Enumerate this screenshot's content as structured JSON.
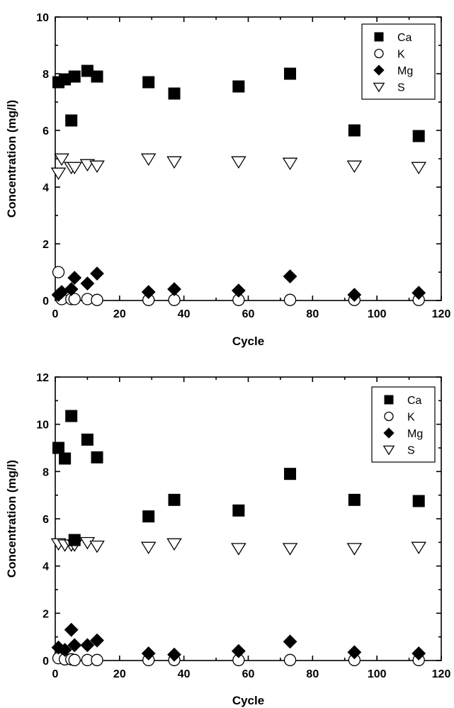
{
  "colors": {
    "filled": "#000000",
    "hollow": "#ffffff",
    "stroke": "#000000"
  },
  "chart_data": [
    {
      "type": "scatter",
      "title": "",
      "xlabel": "Cycle",
      "ylabel": "Concentration (mg/l)",
      "xlim": [
        0,
        120
      ],
      "ylim": [
        0,
        10
      ],
      "xticks": [
        0,
        20,
        40,
        60,
        80,
        100,
        120
      ],
      "yticks": [
        0,
        2,
        4,
        6,
        8,
        10
      ],
      "grid": false,
      "legend_position": "top-right",
      "series": [
        {
          "name": "Ca",
          "marker": "square",
          "points": [
            [
              1,
              7.7
            ],
            [
              3,
              7.8
            ],
            [
              5,
              6.35
            ],
            [
              6,
              7.9
            ],
            [
              10,
              8.1
            ],
            [
              13,
              7.9
            ],
            [
              29,
              7.7
            ],
            [
              37,
              7.3
            ],
            [
              57,
              7.55
            ],
            [
              73,
              8.0
            ],
            [
              93,
              6.0
            ],
            [
              113,
              5.8
            ]
          ]
        },
        {
          "name": "K",
          "marker": "circle",
          "points": [
            [
              1,
              1.0
            ],
            [
              2,
              0.05
            ],
            [
              5,
              0.05
            ],
            [
              6,
              0.05
            ],
            [
              10,
              0.05
            ],
            [
              13,
              0.02
            ],
            [
              29,
              0.02
            ],
            [
              37,
              0.02
            ],
            [
              57,
              0.02
            ],
            [
              73,
              0.02
            ],
            [
              93,
              0.02
            ],
            [
              113,
              0.02
            ]
          ]
        },
        {
          "name": "Mg",
          "marker": "diamond",
          "points": [
            [
              1,
              0.2
            ],
            [
              2,
              0.3
            ],
            [
              5,
              0.4
            ],
            [
              6,
              0.8
            ],
            [
              10,
              0.6
            ],
            [
              13,
              0.95
            ],
            [
              29,
              0.3
            ],
            [
              37,
              0.4
            ],
            [
              57,
              0.35
            ],
            [
              73,
              0.85
            ],
            [
              93,
              0.2
            ],
            [
              113,
              0.27
            ]
          ]
        },
        {
          "name": "S",
          "marker": "triangle-down",
          "points": [
            [
              1,
              4.5
            ],
            [
              2,
              5.0
            ],
            [
              5,
              4.7
            ],
            [
              6,
              4.7
            ],
            [
              10,
              4.8
            ],
            [
              13,
              4.75
            ],
            [
              29,
              5.0
            ],
            [
              37,
              4.9
            ],
            [
              57,
              4.9
            ],
            [
              73,
              4.85
            ],
            [
              93,
              4.75
            ],
            [
              113,
              4.7
            ]
          ]
        }
      ]
    },
    {
      "type": "scatter",
      "title": "",
      "xlabel": "Cycle",
      "ylabel": "Concentration (mg/l)",
      "xlim": [
        0,
        120
      ],
      "ylim": [
        0,
        12
      ],
      "xticks": [
        0,
        20,
        40,
        60,
        80,
        100,
        120
      ],
      "yticks": [
        0,
        2,
        4,
        6,
        8,
        10,
        12
      ],
      "grid": false,
      "legend_position": "top-right",
      "series": [
        {
          "name": "Ca",
          "marker": "square",
          "points": [
            [
              1,
              9.0
            ],
            [
              3,
              8.55
            ],
            [
              5,
              10.35
            ],
            [
              6,
              5.1
            ],
            [
              10,
              9.35
            ],
            [
              13,
              8.6
            ],
            [
              29,
              6.1
            ],
            [
              37,
              6.8
            ],
            [
              57,
              6.35
            ],
            [
              73,
              7.9
            ],
            [
              93,
              6.8
            ],
            [
              113,
              6.75
            ]
          ]
        },
        {
          "name": "K",
          "marker": "circle",
          "points": [
            [
              1,
              0.1
            ],
            [
              3,
              0.05
            ],
            [
              5,
              0.05
            ],
            [
              6,
              0.02
            ],
            [
              10,
              0.02
            ],
            [
              13,
              0.02
            ],
            [
              29,
              0.02
            ],
            [
              37,
              0.02
            ],
            [
              57,
              0.02
            ],
            [
              73,
              0.02
            ],
            [
              93,
              0.02
            ],
            [
              113,
              0.02
            ]
          ]
        },
        {
          "name": "Mg",
          "marker": "diamond",
          "points": [
            [
              1,
              0.55
            ],
            [
              3,
              0.45
            ],
            [
              5,
              1.3
            ],
            [
              6,
              0.65
            ],
            [
              10,
              0.65
            ],
            [
              13,
              0.85
            ],
            [
              29,
              0.3
            ],
            [
              37,
              0.25
            ],
            [
              57,
              0.4
            ],
            [
              73,
              0.8
            ],
            [
              93,
              0.35
            ],
            [
              113,
              0.3
            ]
          ]
        },
        {
          "name": "S",
          "marker": "triangle-down",
          "points": [
            [
              1,
              4.95
            ],
            [
              3,
              4.9
            ],
            [
              5,
              4.9
            ],
            [
              6,
              4.9
            ],
            [
              10,
              5.0
            ],
            [
              13,
              4.85
            ],
            [
              29,
              4.8
            ],
            [
              37,
              4.95
            ],
            [
              57,
              4.75
            ],
            [
              73,
              4.75
            ],
            [
              93,
              4.75
            ],
            [
              113,
              4.8
            ]
          ]
        }
      ]
    }
  ]
}
